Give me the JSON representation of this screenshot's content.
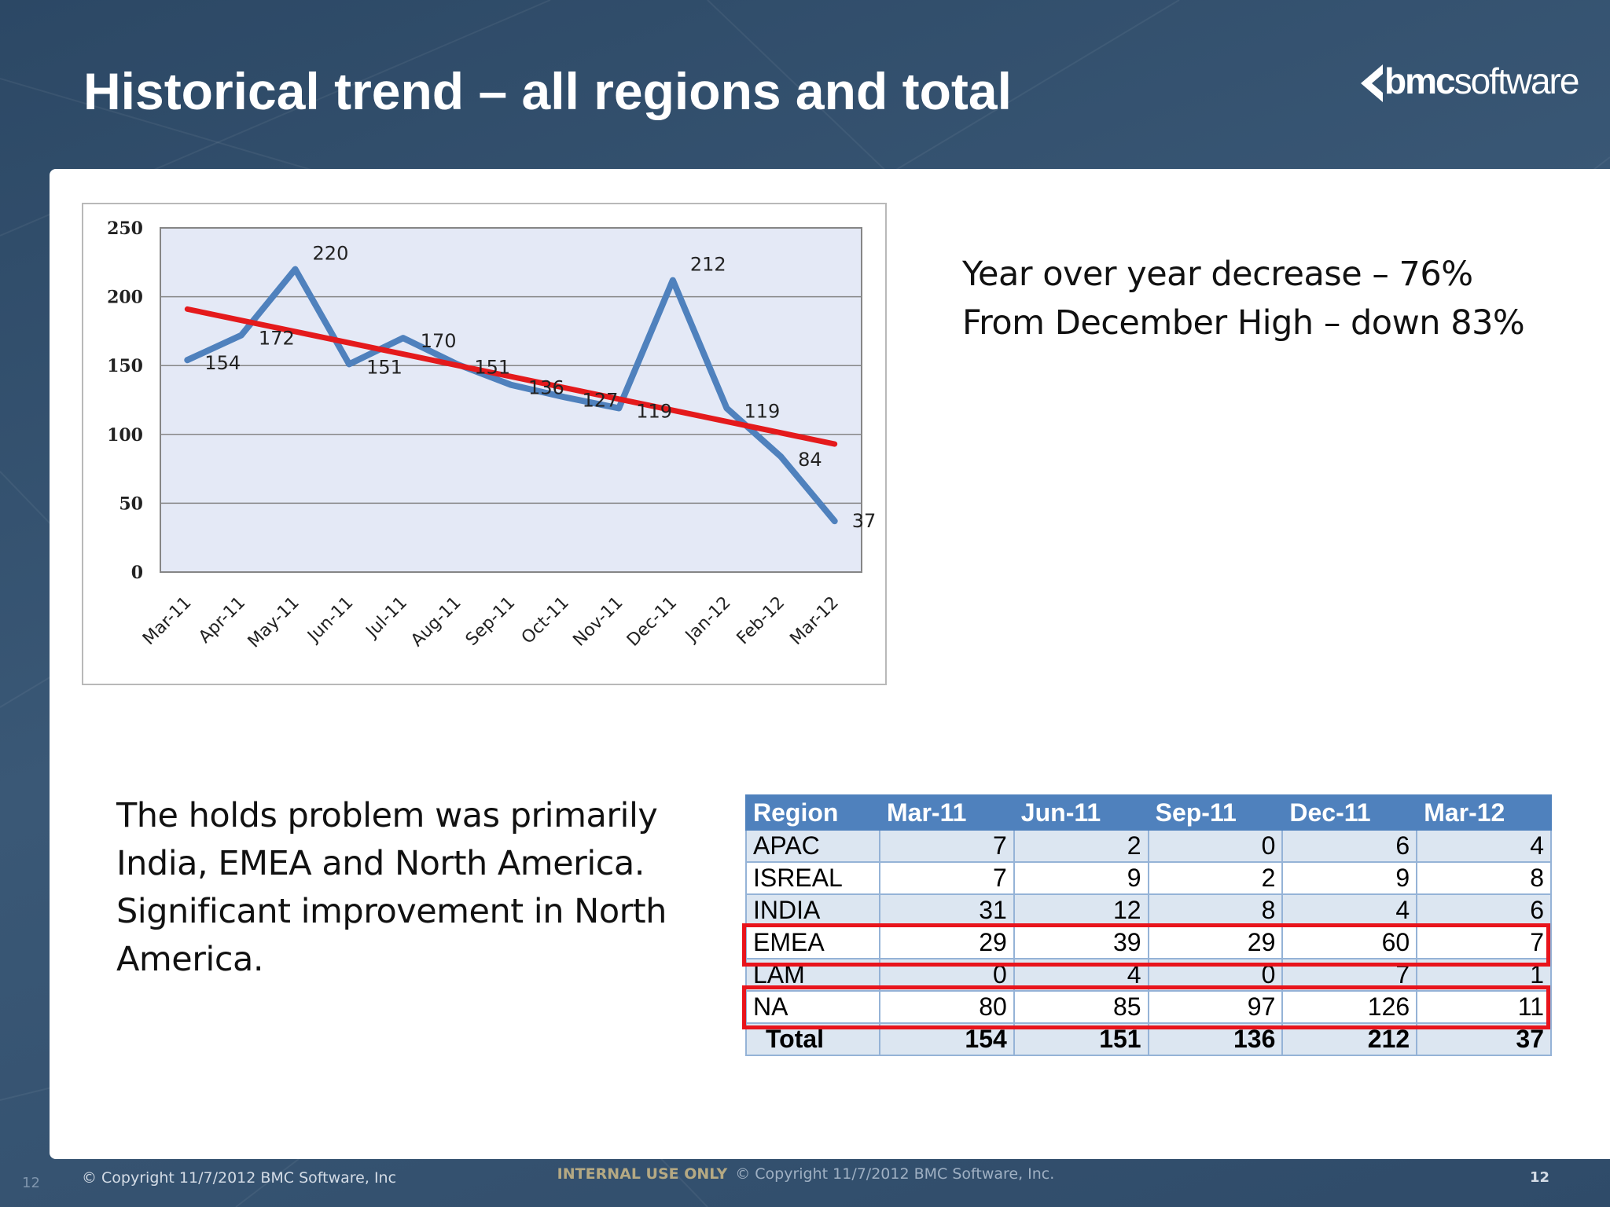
{
  "slide": {
    "title": "Historical trend – all regions and total",
    "logo_text_bold": "bmc",
    "logo_text_light": "software"
  },
  "side_text": {
    "line1": "Year over year decrease – 76%",
    "line2": "From December High – down 83%"
  },
  "body_text": {
    "line1": "The holds problem was primarily",
    "line2": "India, EMEA and North America.",
    "line3": "Significant improvement in North",
    "line4": "America."
  },
  "chart_data": {
    "type": "line",
    "title": "",
    "xlabel": "",
    "ylabel": "",
    "categories": [
      "Mar-11",
      "Apr-11",
      "May-11",
      "Jun-11",
      "Jul-11",
      "Aug-11",
      "Sep-11",
      "Oct-11",
      "Nov-11",
      "Dec-11",
      "Jan-12",
      "Feb-12",
      "Mar-12"
    ],
    "series": [
      {
        "values": [
          154,
          172,
          220,
          151,
          170,
          151,
          136,
          127,
          119,
          212,
          119,
          84,
          37
        ],
        "color": "#4f81bd"
      }
    ],
    "trendline": {
      "start": 191,
      "end": 93,
      "color": "#e41a1c"
    },
    "ylim": [
      0,
      250
    ],
    "yticks": [
      0,
      50,
      100,
      150,
      200,
      250
    ],
    "grid": true,
    "legend": "none",
    "data_labels": [
      "154",
      "172",
      "220",
      "151",
      "170",
      "151",
      "136",
      "127",
      "119",
      "212",
      "119",
      "84",
      "37"
    ]
  },
  "table": {
    "headers": [
      "Region",
      "Mar-11",
      "Jun-11",
      "Sep-11",
      "Dec-11",
      "Mar-12"
    ],
    "rows": [
      {
        "region": "APAC",
        "values": [
          "7",
          "2",
          "0",
          "6",
          "4"
        ]
      },
      {
        "region": "ISREAL",
        "values": [
          "7",
          "9",
          "2",
          "9",
          "8"
        ]
      },
      {
        "region": "INDIA",
        "values": [
          "31",
          "12",
          "8",
          "4",
          "6"
        ]
      },
      {
        "region": "EMEA",
        "values": [
          "29",
          "39",
          "29",
          "60",
          "7"
        ]
      },
      {
        "region": "LAM",
        "values": [
          "0",
          "4",
          "0",
          "7",
          "1"
        ]
      },
      {
        "region": "NA",
        "values": [
          "80",
          "85",
          "97",
          "126",
          "11"
        ]
      }
    ],
    "total": {
      "label": "Total",
      "values": [
        "154",
        "151",
        "136",
        "212",
        "37"
      ]
    },
    "highlight_color": "#e8141c"
  },
  "footer": {
    "copyright": "© Copyright 11/7/2012 BMC Software, Inc",
    "internal": "INTERNAL USE ONLY",
    "center_copyright": "© Copyright 11/7/2012 BMC Software, Inc.",
    "page_left": "12",
    "page_right": "12"
  }
}
